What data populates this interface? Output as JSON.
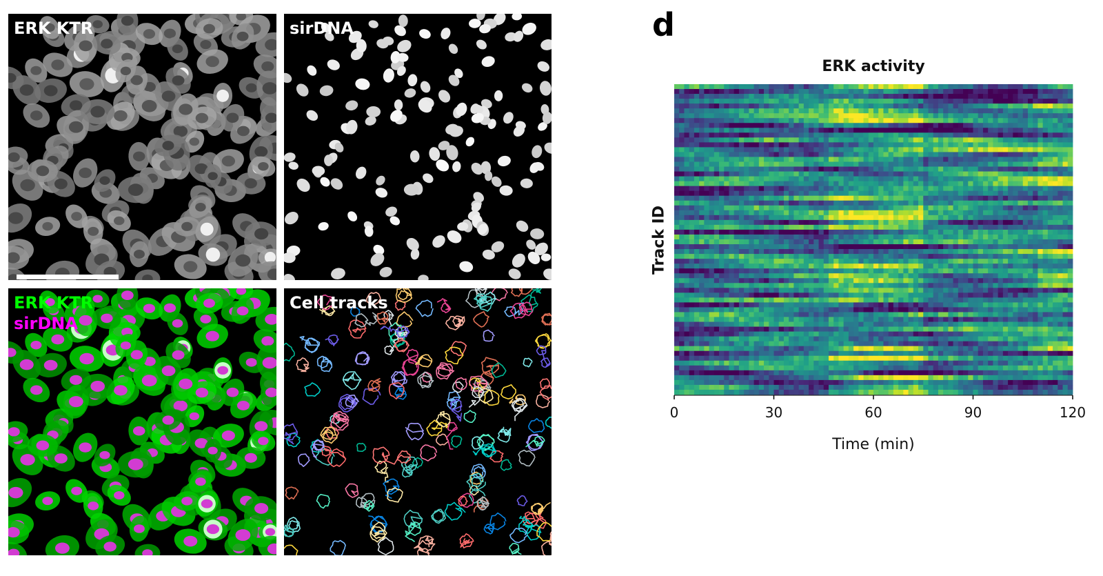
{
  "panels": {
    "erk": {
      "label": "ERK KTR",
      "label_color": "#ffffff"
    },
    "sirdna": {
      "label": "sirDNA",
      "label_color": "#ffffff"
    },
    "merge": {
      "label_line1": "ERK KTR",
      "label_line1_color": "#00ff00",
      "label_line2": "sirDNA",
      "label_line2_color": "#ff00ff"
    },
    "tracks": {
      "label": "Cell tracks",
      "label_color": "#ffffff"
    }
  },
  "panel_letter": "d",
  "chart_data": {
    "type": "heatmap",
    "title": "ERK activity",
    "xlabel": "Time (min)",
    "ylabel": "Track ID",
    "xlim": [
      0,
      120
    ],
    "x_ticks": [
      0,
      30,
      60,
      90,
      120
    ],
    "n_tracks": 64,
    "n_timepoints": 80,
    "colormap": "viridis",
    "values": "per-track ERK activity over time (0-1 normalized); rows alternate between low (dark purple) and high (yellow) activity bands, with the densest high-activity regions between ~45 and ~75 min and increasing activity toward 110-120 min"
  },
  "colors": {
    "viridis_low": "#440154",
    "viridis_mid": "#21918c",
    "viridis_high": "#fde725"
  }
}
